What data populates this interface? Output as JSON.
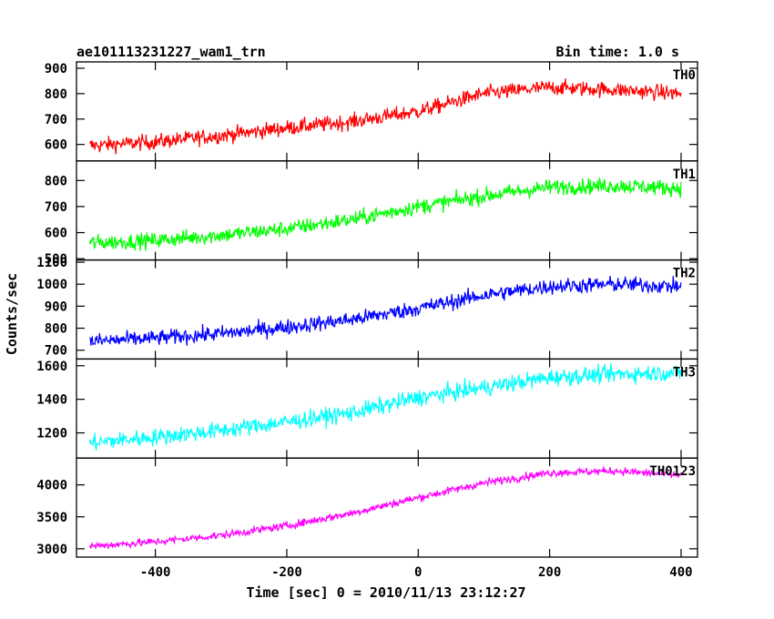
{
  "header": {
    "title": "ae101113231227_wam1_trn",
    "bin_time": "Bin time: 1.0 s"
  },
  "axes": {
    "ylabel": "Counts/sec",
    "xlabel": "Time [sec] 0 = 2010/11/13 23:12:27"
  },
  "chart_data": {
    "type": "line",
    "title": "ae101113231227_wam1_trn",
    "xlabel": "Time [sec] 0 = 2010/11/13 23:12:27",
    "ylabel": "Counts/sec",
    "xlim": [
      -520,
      425
    ],
    "x_ticks": [
      -400,
      -200,
      0,
      200,
      400
    ],
    "x_start": -500,
    "x_end": 400,
    "bin": 1.0,
    "panels": [
      {
        "name": "TH0",
        "color": "#ff0000",
        "ylim": [
          535,
          925
        ],
        "y_ticks": [
          600,
          700,
          800,
          900
        ],
        "trend_x": [
          -500,
          -400,
          -300,
          -200,
          -100,
          0,
          100,
          200,
          300,
          400
        ],
        "trend_y": [
          595,
          610,
          635,
          665,
          690,
          730,
          800,
          825,
          815,
          800
        ],
        "noise": 30
      },
      {
        "name": "TH1",
        "color": "#00ff00",
        "ylim": [
          495,
          875
        ],
        "y_ticks": [
          500,
          600,
          700,
          800
        ],
        "trend_x": [
          -500,
          -400,
          -300,
          -200,
          -100,
          0,
          100,
          200,
          300,
          400
        ],
        "trend_y": [
          560,
          570,
          590,
          615,
          650,
          700,
          740,
          775,
          780,
          770
        ],
        "noise": 30
      },
      {
        "name": "TH2",
        "color": "#0000ff",
        "ylim": [
          660,
          1110
        ],
        "y_ticks": [
          700,
          800,
          900,
          1000,
          1100
        ],
        "trend_x": [
          -500,
          -400,
          -300,
          -200,
          -100,
          0,
          100,
          200,
          300,
          400
        ],
        "trend_y": [
          740,
          755,
          775,
          805,
          840,
          890,
          950,
          990,
          1000,
          990
        ],
        "noise": 35
      },
      {
        "name": "TH3",
        "color": "#00ffff",
        "ylim": [
          1050,
          1640
        ],
        "y_ticks": [
          1200,
          1400,
          1600
        ],
        "trend_x": [
          -500,
          -400,
          -300,
          -200,
          -100,
          0,
          100,
          200,
          300,
          400
        ],
        "trend_y": [
          1140,
          1175,
          1215,
          1265,
          1320,
          1410,
          1470,
          1530,
          1550,
          1560
        ],
        "noise": 50
      },
      {
        "name": "TH0123",
        "color": "#ff00ff",
        "ylim": [
          2870,
          4420
        ],
        "y_ticks": [
          3000,
          3500,
          4000
        ],
        "trend_x": [
          -500,
          -400,
          -300,
          -200,
          -100,
          0,
          100,
          200,
          300,
          400
        ],
        "trend_y": [
          3040,
          3110,
          3210,
          3360,
          3560,
          3800,
          4030,
          4190,
          4220,
          4150
        ],
        "noise": 60
      }
    ]
  }
}
